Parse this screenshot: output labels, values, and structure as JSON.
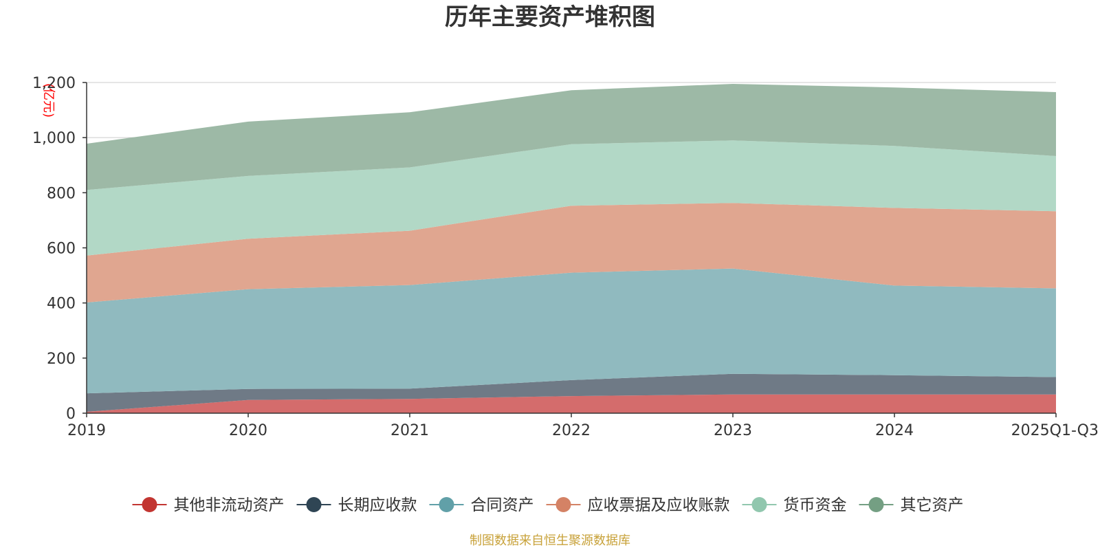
{
  "chart_data": {
    "type": "area",
    "stacked": true,
    "title": "历年主要资产堆积图",
    "unit_label": "(亿元)",
    "categories": [
      "2019",
      "2020",
      "2021",
      "2022",
      "2023",
      "2024",
      "2025Q1-Q3"
    ],
    "ylim": [
      0,
      1200
    ],
    "yticks": [
      0,
      200,
      400,
      600,
      800,
      1000,
      1200
    ],
    "ytick_labels": [
      "0",
      "200",
      "400",
      "600",
      "800",
      "1,000",
      "1,200"
    ],
    "series": [
      {
        "name": "其他非流动资产",
        "color": "#d46c6c",
        "legend_color": "#c23531",
        "values": [
          5,
          48,
          52,
          62,
          68,
          68,
          68
        ]
      },
      {
        "name": "长期应收款",
        "color": "#6f7a86",
        "legend_color": "#2f4554",
        "values": [
          67,
          40,
          37,
          58,
          75,
          70,
          63
        ]
      },
      {
        "name": "合同资产",
        "color": "#90babf",
        "legend_color": "#61a0a8",
        "values": [
          330,
          362,
          376,
          390,
          382,
          325,
          322
        ]
      },
      {
        "name": "应收票据及应收账款",
        "color": "#e0a690",
        "legend_color": "#d48265",
        "values": [
          170,
          183,
          197,
          243,
          238,
          282,
          280
        ]
      },
      {
        "name": "货币资金",
        "color": "#b2d8c6",
        "legend_color": "#91c7ae",
        "values": [
          238,
          228,
          230,
          223,
          227,
          225,
          200
        ]
      },
      {
        "name": "其它资产",
        "color": "#9db9a6",
        "legend_color": "#749f83",
        "values": [
          168,
          197,
          200,
          196,
          205,
          212,
          232
        ]
      }
    ],
    "legend_position": "bottom",
    "grid": true
  },
  "source": {
    "text": "制图数据来自恒生聚源数据库",
    "color": "#c8a23a"
  },
  "colors": {
    "unit_label": "#ff0000",
    "axis": "#333333",
    "grid": "#cccccc"
  }
}
